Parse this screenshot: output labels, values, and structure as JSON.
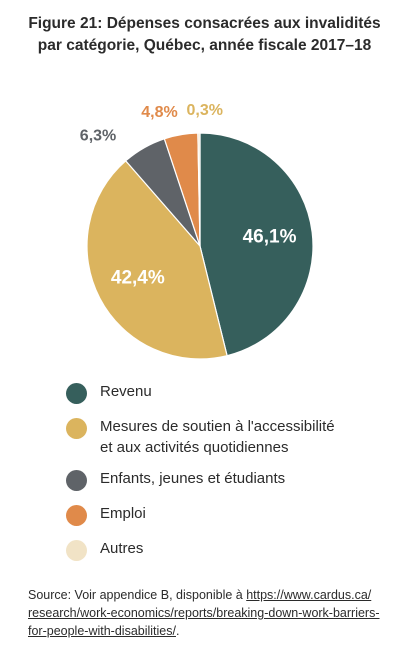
{
  "title": {
    "line1": "Figure 21: Dépenses consacrées aux invalidités",
    "line2": "par catégorie, Québec, année fiscale 2017–18"
  },
  "chart_data": {
    "type": "pie",
    "title": "Figure 21: Dépenses consacrées aux invalidités par catégorie, Québec, année fiscale 2017–18",
    "legend_position": "bottom",
    "slices": [
      {
        "name": "Revenu",
        "value": 46.1,
        "label": "46,1%",
        "color": "#365f5c",
        "label_color": "#ffffff",
        "label_inside": true
      },
      {
        "name": "Mesures de soutien à l'accessibilité et aux activités quotidiennes",
        "value": 42.4,
        "label": "42,4%",
        "color": "#dbb45e",
        "label_color": "#ffffff",
        "label_inside": true
      },
      {
        "name": "Enfants, jeunes et étudiants",
        "value": 6.3,
        "label": "6,3%",
        "color": "#5f6368",
        "label_color": "#5f6368",
        "label_inside": false
      },
      {
        "name": "Emploi",
        "value": 4.8,
        "label": "4,8%",
        "color": "#e08a4a",
        "label_color": "#e08a4a",
        "label_inside": false
      },
      {
        "name": "Autres",
        "value": 0.3,
        "label": "0,3%",
        "color": "#f1e3c6",
        "label_color": "#dbb45e",
        "label_inside": false
      }
    ]
  },
  "legend": [
    {
      "lines": [
        "Revenu"
      ],
      "color": "#365f5c"
    },
    {
      "lines": [
        "Mesures de soutien à l'accessibilité",
        "et aux activités quotidiennes"
      ],
      "color": "#dbb45e"
    },
    {
      "lines": [
        "Enfants, jeunes et étudiants"
      ],
      "color": "#5f6368"
    },
    {
      "lines": [
        "Emploi"
      ],
      "color": "#e08a4a"
    },
    {
      "lines": [
        "Autres"
      ],
      "color": "#f1e3c6"
    }
  ],
  "source": {
    "prefix": "Source: Voir appendice B, disponible à ",
    "link_line1": "https://www.cardus.ca/",
    "link_line2": "research/work-economics/reports/breaking-down-work-barriers-",
    "link_line3": "for-people-with-disabilities/",
    "suffix": "."
  }
}
